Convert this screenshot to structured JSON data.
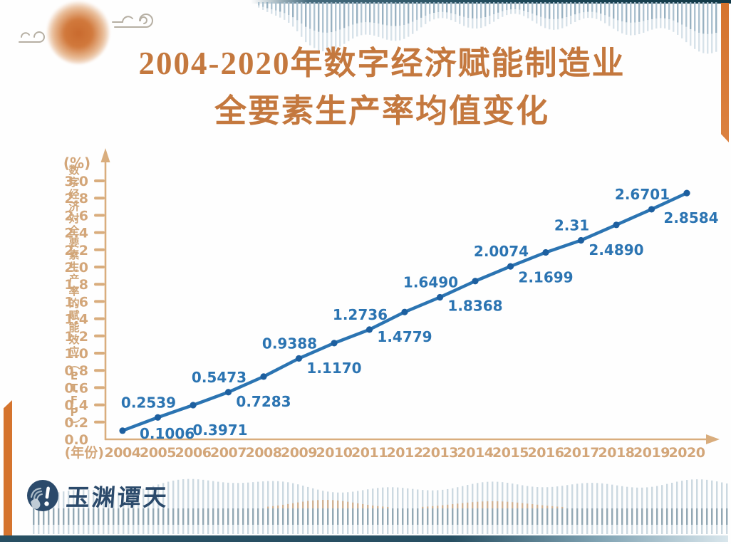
{
  "title": {
    "line1": "2004-2020年数字经济赋能制造业",
    "line2": "全要素生产率均值变化"
  },
  "chart_data": {
    "type": "line",
    "title": "2004-2020年数字经济赋能制造业全要素生产率均值变化",
    "categories": [
      "2004",
      "2005",
      "2006",
      "2007",
      "2008",
      "2009",
      "2010",
      "2011",
      "2012",
      "2013",
      "2014",
      "2015",
      "2016",
      "2017",
      "2018",
      "2019",
      "2020"
    ],
    "values": [
      0.1006,
      0.2539,
      0.3971,
      0.5473,
      0.7283,
      0.9388,
      1.117,
      1.2736,
      1.4779,
      1.649,
      1.8368,
      2.0074,
      2.1699,
      2.31,
      2.489,
      2.6701,
      2.8584
    ],
    "point_labels": [
      "0.1006",
      "0.2539",
      "0.3971",
      "0.5473",
      "0.7283",
      "0.9388",
      "1.1170",
      "1.2736",
      "1.4779",
      "1.6490",
      "1.8368",
      "2.0074",
      "2.1699",
      "2.31",
      "2.4890",
      "2.6701",
      "2.8584"
    ],
    "ylabel": "数字经济对全要素生产率的赋能效应（ETFP）",
    "y_unit": "(%)",
    "x_unit": "(年份)",
    "ylim": [
      0.0,
      3.0
    ],
    "ytick_step": 0.2,
    "grid": false,
    "legend": "none",
    "colors": {
      "line": "#2b74b2",
      "point": "#1d5f9f",
      "data_label": "#2b74b2",
      "axis": "#d9ad7d",
      "tick_label": "#d3a679",
      "title_orange": "#c4783e",
      "brand_navy": "#2b4a6b",
      "teal_bar": "#1c4657",
      "accent_orange": "#d5742e"
    }
  },
  "footer": {
    "brand": "玉渊谭天"
  }
}
